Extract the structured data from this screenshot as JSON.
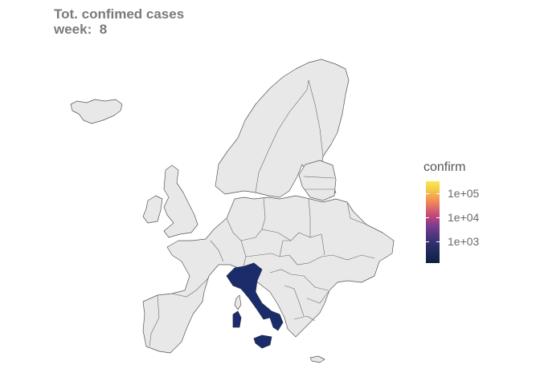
{
  "title": {
    "line1": "Tot. confimed cases",
    "line2": "week:  8"
  },
  "legend": {
    "title": "confirm",
    "ticks": [
      "1e+05",
      "1e+04",
      "1e+03"
    ],
    "colors": {
      "low": "#0d2040",
      "mid": "#c2477d",
      "high": "#f6ea4c"
    }
  },
  "map": {
    "highlighted_country": "Italy",
    "highlight_color": "#1b2c6b",
    "default_color": "#e8e8e8"
  }
}
